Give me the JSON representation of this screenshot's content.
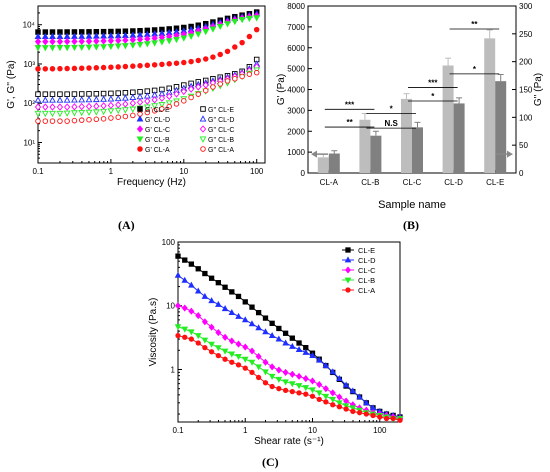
{
  "figure": {
    "panel_labels": [
      "(A)",
      "(B)",
      "(C)"
    ]
  },
  "colors": {
    "E": "#000000",
    "D": "#1f2fff",
    "C": "#ff00ff",
    "B": "#22ee22",
    "A": "#ff1111",
    "bar_light": "#bdbdbd",
    "bar_dark": "#808080"
  },
  "chart_data": [
    {
      "panel": "A",
      "type": "scatter",
      "xlabel": "Frequency (Hz)",
      "ylabel": "G', G'' (Pa)",
      "xscale": "log",
      "yscale": "log",
      "xlim": [
        0.1,
        130
      ],
      "ylim": [
        3,
        30000
      ],
      "xticks": [
        0.1,
        1,
        10,
        100
      ],
      "xtick_labels": [
        "0.1",
        "1",
        "10",
        "100"
      ],
      "yticks": [
        10,
        100,
        1000,
        10000
      ],
      "ytick_labels": [
        "10¹",
        "10²",
        "10³",
        "10⁴"
      ],
      "legend_position": "bottom-right",
      "x": [
        0.1,
        0.126,
        0.158,
        0.2,
        0.251,
        0.316,
        0.398,
        0.501,
        0.631,
        0.794,
        1,
        1.26,
        1.58,
        2,
        2.51,
        3.16,
        3.98,
        5.01,
        6.31,
        7.94,
        10,
        12.6,
        15.8,
        20,
        25.1,
        31.6,
        39.8,
        50.1,
        63.1,
        79.4,
        100
      ],
      "series": [
        {
          "name": "G' CL-E",
          "key": "E",
          "marker": "square",
          "filled": true,
          "values": [
            6500,
            6500,
            6510,
            6520,
            6530,
            6550,
            6570,
            6590,
            6620,
            6650,
            6700,
            6760,
            6830,
            6920,
            7030,
            7170,
            7340,
            7550,
            7810,
            8120,
            8500,
            9000,
            9700,
            10600,
            11700,
            13000,
            14500,
            16000,
            17500,
            19000,
            21000
          ]
        },
        {
          "name": "G' CL-D",
          "key": "D",
          "marker": "triangle-up",
          "filled": true,
          "values": [
            5000,
            5000,
            5010,
            5020,
            5030,
            5050,
            5070,
            5090,
            5120,
            5150,
            5200,
            5260,
            5330,
            5420,
            5530,
            5670,
            5840,
            6050,
            6310,
            6620,
            7000,
            7500,
            8200,
            9100,
            10200,
            11500,
            13000,
            14500,
            16000,
            17500,
            19000
          ]
        },
        {
          "name": "G' CL-C",
          "key": "C",
          "marker": "diamond",
          "filled": true,
          "values": [
            3700,
            3700,
            3710,
            3720,
            3730,
            3750,
            3770,
            3790,
            3820,
            3850,
            3900,
            3960,
            4030,
            4120,
            4230,
            4370,
            4540,
            4750,
            5010,
            5320,
            5700,
            6200,
            6900,
            7800,
            8900,
            10200,
            11700,
            13200,
            14700,
            16000,
            17000
          ]
        },
        {
          "name": "G' CL-B",
          "key": "B",
          "marker": "triangle-down",
          "filled": true,
          "values": [
            2600,
            2600,
            2610,
            2620,
            2630,
            2650,
            2670,
            2690,
            2720,
            2750,
            2800,
            2860,
            2930,
            3020,
            3130,
            3270,
            3440,
            3650,
            3910,
            4220,
            4600,
            5100,
            5800,
            6700,
            7800,
            9100,
            10600,
            12100,
            13600,
            14500,
            15000
          ]
        },
        {
          "name": "G' CL-A",
          "key": "A",
          "marker": "circle",
          "filled": true,
          "values": [
            750,
            752,
            755,
            760,
            765,
            772,
            780,
            790,
            800,
            812,
            826,
            842,
            860,
            880,
            902,
            926,
            952,
            980,
            1010,
            1045,
            1090,
            1150,
            1230,
            1340,
            1500,
            1750,
            2100,
            2700,
            3500,
            5000,
            7500
          ]
        },
        {
          "name": "G'' CL-E",
          "key": "E",
          "marker": "square",
          "filled": false,
          "values": [
            170,
            170,
            170,
            170,
            170,
            171,
            172,
            173,
            174,
            176,
            178,
            181,
            185,
            190,
            196,
            203,
            212,
            224,
            240,
            262,
            290,
            320,
            350,
            380,
            420,
            460,
            500,
            560,
            650,
            850,
            1300
          ]
        },
        {
          "name": "G'' CL-D",
          "key": "D",
          "marker": "triangle-up",
          "filled": false,
          "values": [
            120,
            120,
            120,
            120,
            120,
            121,
            122,
            123,
            124,
            126,
            128,
            131,
            135,
            140,
            146,
            153,
            162,
            174,
            190,
            212,
            240,
            270,
            300,
            330,
            370,
            410,
            460,
            520,
            600,
            750,
            1000
          ]
        },
        {
          "name": "G'' CL-C",
          "key": "C",
          "marker": "diamond",
          "filled": false,
          "values": [
            80,
            80,
            80,
            80,
            80,
            81,
            82,
            83,
            84,
            86,
            88,
            91,
            95,
            100,
            106,
            113,
            122,
            134,
            150,
            172,
            200,
            230,
            260,
            290,
            330,
            370,
            420,
            480,
            560,
            680,
            850
          ]
        },
        {
          "name": "G'' CL-B",
          "key": "B",
          "marker": "triangle-down",
          "filled": false,
          "values": [
            55,
            55,
            55,
            55,
            56,
            57,
            58,
            59,
            60,
            62,
            64,
            66,
            68,
            71,
            75,
            80,
            86,
            93,
            102,
            114,
            130,
            150,
            175,
            205,
            240,
            280,
            330,
            400,
            480,
            580,
            700
          ]
        },
        {
          "name": "G'' CL-A",
          "key": "A",
          "marker": "circle",
          "filled": false,
          "values": [
            35,
            35,
            35,
            35,
            35,
            36,
            37,
            38,
            39,
            40,
            42,
            44,
            46,
            49,
            53,
            58,
            64,
            72,
            82,
            96,
            115,
            140,
            170,
            210,
            260,
            310,
            370,
            420,
            480,
            550,
            600
          ]
        }
      ]
    },
    {
      "panel": "B",
      "type": "bar",
      "xlabel": "Sample name",
      "ylabel": "G' (Pa)",
      "ylabel_right": "G'' (Pa)",
      "categories": [
        "CL-A",
        "CL-B",
        "CL-C",
        "CL-D",
        "CL-E"
      ],
      "ylim": [
        0,
        8000
      ],
      "yticks": [
        0,
        1000,
        2000,
        3000,
        4000,
        5000,
        6000,
        7000,
        8000
      ],
      "ylim_right": [
        0,
        300
      ],
      "yticks_right": [
        0,
        50,
        100,
        150,
        200,
        250,
        300
      ],
      "series": [
        {
          "name": "G'",
          "axis": "left",
          "color_key": "bar_light",
          "values": [
            750,
            2550,
            3550,
            5150,
            6450
          ],
          "errors": [
            150,
            300,
            250,
            350,
            400
          ]
        },
        {
          "name": "G''",
          "axis": "right",
          "color_key": "bar_dark",
          "values": [
            35,
            67,
            82,
            125,
            165
          ],
          "errors": [
            5,
            8,
            9,
            10,
            12
          ]
        }
      ],
      "significance": [
        {
          "label": "***",
          "from": "CL-A",
          "to": "CL-B",
          "level": 3050
        },
        {
          "label": "**",
          "from": "CL-A",
          "to": "CL-B",
          "level": 2200
        },
        {
          "label": "*",
          "from": "CL-B",
          "to": "CL-C",
          "level": 2850
        },
        {
          "label": "N.S",
          "from": "CL-B",
          "to": "CL-C",
          "level": 2150
        },
        {
          "label": "***",
          "from": "CL-C",
          "to": "CL-D",
          "level": 4100
        },
        {
          "label": "*",
          "from": "CL-C",
          "to": "CL-D",
          "level": 3450
        },
        {
          "label": "**",
          "from": "CL-D",
          "to": "CL-E",
          "level": 6900
        },
        {
          "label": "*",
          "from": "CL-D",
          "to": "CL-E",
          "level": 4750
        }
      ],
      "axis_arrows": [
        "left",
        "right"
      ]
    },
    {
      "panel": "C",
      "type": "line",
      "xlabel": "Shear rate (s⁻¹)",
      "ylabel": "Viscosity (Pa.s)",
      "xscale": "log",
      "yscale": "log",
      "xlim": [
        0.1,
        200
      ],
      "ylim": [
        0.15,
        100
      ],
      "xticks": [
        0.1,
        1,
        10,
        100
      ],
      "xtick_labels": [
        "0.1",
        "1",
        "10",
        "100"
      ],
      "yticks": [
        1,
        10,
        100
      ],
      "ytick_labels": [
        "1",
        "10",
        "100"
      ],
      "legend_position": "top-right",
      "x": [
        0.1,
        0.126,
        0.158,
        0.2,
        0.251,
        0.316,
        0.398,
        0.501,
        0.631,
        0.794,
        1,
        1.26,
        1.58,
        2,
        2.51,
        3.16,
        3.98,
        5.01,
        6.31,
        7.94,
        10,
        12.6,
        15.8,
        20,
        25.1,
        31.6,
        39.8,
        50.1,
        63.1,
        79.4,
        100,
        126,
        158,
        200
      ],
      "series": [
        {
          "name": "CL-E",
          "key": "E",
          "marker": "square",
          "values": [
            60,
            52,
            45,
            38,
            32,
            27,
            23,
            19.5,
            16.5,
            14,
            11.5,
            9.5,
            7.8,
            6.4,
            5.3,
            4.4,
            3.7,
            3.1,
            2.6,
            2.2,
            1.8,
            1.45,
            1.15,
            0.9,
            0.7,
            0.55,
            0.45,
            0.37,
            0.3,
            0.25,
            0.22,
            0.2,
            0.19,
            0.18
          ]
        },
        {
          "name": "CL-D",
          "key": "D",
          "marker": "triangle-up",
          "values": [
            30,
            25,
            21,
            17,
            14,
            12,
            10.5,
            9,
            7.8,
            6.8,
            6,
            5.2,
            4.5,
            3.9,
            3.4,
            3,
            2.6,
            2.3,
            2.05,
            1.85,
            1.65,
            1.4,
            1.15,
            0.92,
            0.72,
            0.57,
            0.46,
            0.37,
            0.3,
            0.25,
            0.22,
            0.2,
            0.19,
            0.18
          ]
        },
        {
          "name": "CL-C",
          "key": "C",
          "marker": "diamond",
          "values": [
            10,
            9.2,
            8.2,
            7,
            5.6,
            4.6,
            3.8,
            3.2,
            2.8,
            2.5,
            2.25,
            1.95,
            1.6,
            1.3,
            1.1,
            0.98,
            0.9,
            0.84,
            0.78,
            0.72,
            0.66,
            0.58,
            0.5,
            0.43,
            0.37,
            0.32,
            0.28,
            0.25,
            0.23,
            0.21,
            0.2,
            0.19,
            0.18,
            0.17
          ]
        },
        {
          "name": "CL-B",
          "key": "B",
          "marker": "triangle-down",
          "values": [
            4.7,
            4.3,
            3.9,
            3.4,
            2.9,
            2.5,
            2.2,
            1.95,
            1.75,
            1.6,
            1.45,
            1.3,
            1.1,
            0.92,
            0.78,
            0.7,
            0.64,
            0.6,
            0.56,
            0.52,
            0.48,
            0.43,
            0.38,
            0.34,
            0.3,
            0.27,
            0.25,
            0.23,
            0.21,
            0.2,
            0.19,
            0.18,
            0.17,
            0.17
          ]
        },
        {
          "name": "CL-A",
          "key": "A",
          "marker": "circle",
          "values": [
            3.4,
            3.2,
            3,
            2.6,
            2.2,
            1.9,
            1.65,
            1.45,
            1.3,
            1.18,
            1.05,
            0.9,
            0.75,
            0.62,
            0.54,
            0.5,
            0.47,
            0.45,
            0.43,
            0.41,
            0.38,
            0.34,
            0.31,
            0.28,
            0.26,
            0.24,
            0.22,
            0.21,
            0.2,
            0.19,
            0.18,
            0.17,
            0.17,
            0.16
          ]
        }
      ]
    }
  ]
}
